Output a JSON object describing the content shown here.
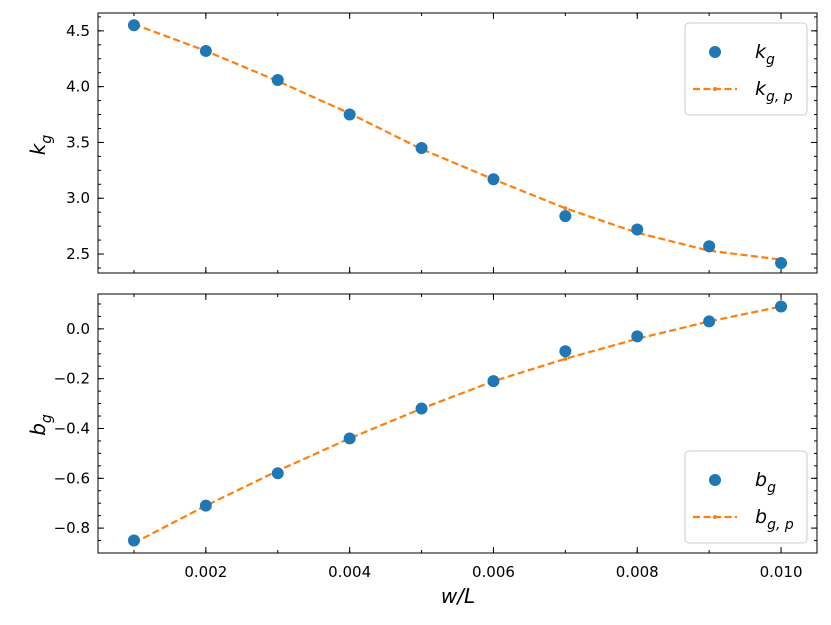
{
  "colors": {
    "measured": "#1f77b4",
    "fit": "#ff7f0e"
  },
  "chart_data": [
    {
      "type": "scatter",
      "panel": "top",
      "xlabel": "w/L",
      "ylabel": "k_g",
      "xlim": [
        0.0005,
        0.0105
      ],
      "ylim": [
        2.33,
        4.66
      ],
      "yticks": [
        2.5,
        3.0,
        3.5,
        4.0,
        4.5
      ],
      "ytick_labels": [
        "2.5",
        "3.0",
        "3.5",
        "4.0",
        "4.5"
      ],
      "xticks": [
        0.002,
        0.004,
        0.006,
        0.008,
        0.01
      ],
      "xtick_labels": [],
      "x": [
        0.001,
        0.002,
        0.003,
        0.004,
        0.005,
        0.006,
        0.007,
        0.008,
        0.009,
        0.01
      ],
      "series": [
        {
          "name": "k_g",
          "kind": "markers",
          "values": [
            4.55,
            4.32,
            4.06,
            3.75,
            3.45,
            3.17,
            2.84,
            2.72,
            2.57,
            2.42
          ]
        },
        {
          "name": "k_g,p",
          "kind": "dashed-line",
          "values": [
            4.56,
            4.32,
            4.05,
            3.76,
            3.44,
            3.17,
            2.91,
            2.69,
            2.53,
            2.45
          ]
        }
      ],
      "legend": {
        "placement": "top-right",
        "labels": [
          {
            "main": "k",
            "sub": "g"
          },
          {
            "main": "k",
            "sub": "g, p"
          }
        ]
      }
    },
    {
      "type": "scatter",
      "panel": "bottom",
      "xlabel": "w/L",
      "ylabel": "b_g",
      "xlim": [
        0.0005,
        0.0105
      ],
      "ylim": [
        -0.9,
        0.14
      ],
      "yticks": [
        -0.8,
        -0.6,
        -0.4,
        -0.2,
        0.0
      ],
      "ytick_labels": [
        "−0.8",
        "−0.6",
        "−0.4",
        "−0.2",
        "0.0"
      ],
      "xticks": [
        0.002,
        0.004,
        0.006,
        0.008,
        0.01
      ],
      "xtick_labels": [
        "0.002",
        "0.004",
        "0.006",
        "0.008",
        "0.010"
      ],
      "x": [
        0.001,
        0.002,
        0.003,
        0.004,
        0.005,
        0.006,
        0.007,
        0.008,
        0.009,
        0.01
      ],
      "series": [
        {
          "name": "b_g",
          "kind": "markers",
          "values": [
            -0.85,
            -0.71,
            -0.58,
            -0.44,
            -0.32,
            -0.21,
            -0.09,
            -0.03,
            0.03,
            0.09
          ]
        },
        {
          "name": "b_g,p",
          "kind": "dashed-line",
          "values": [
            -0.86,
            -0.71,
            -0.57,
            -0.44,
            -0.32,
            -0.21,
            -0.12,
            -0.04,
            0.03,
            0.09
          ]
        }
      ],
      "legend": {
        "placement": "bottom-right",
        "labels": [
          {
            "main": "b",
            "sub": "g"
          },
          {
            "main": "b",
            "sub": "g, p"
          }
        ]
      }
    }
  ],
  "labels": {
    "x_axis": {
      "main": "w",
      "rest": "/L"
    },
    "top_y": {
      "main": "k",
      "sub": "g"
    },
    "bottom_y": {
      "main": "b",
      "sub": "g"
    }
  }
}
